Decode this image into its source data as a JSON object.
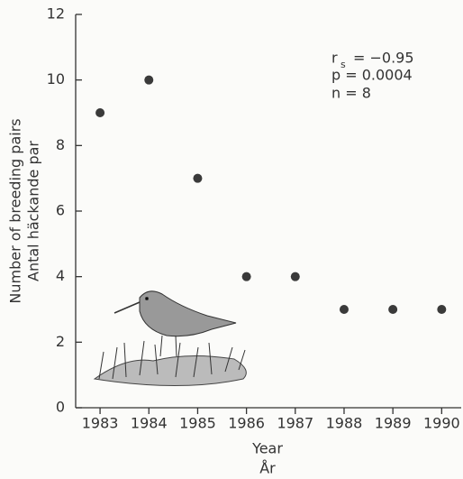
{
  "chart_data": {
    "type": "scatter",
    "x": [
      1983,
      1984,
      1985,
      1986,
      1987,
      1988,
      1989,
      1990
    ],
    "values": [
      9,
      10,
      7,
      4,
      4,
      3,
      3,
      3
    ],
    "color": "#3a3a3a",
    "xlim": [
      1982.5,
      1990.4
    ],
    "xticks": [
      1983,
      1984,
      1985,
      1986,
      1987,
      1988,
      1989,
      1990
    ],
    "ylim": [
      0,
      12
    ],
    "yticks": [
      0,
      2,
      4,
      6,
      8,
      10,
      12
    ],
    "x_label": [
      "Year",
      "År"
    ],
    "y_label": [
      "Number of breeding pairs",
      "Antal häckande par"
    ],
    "stats": [
      {
        "symbol": "r",
        "subscript": "s",
        "text": "= −0.95"
      },
      {
        "text": "p = 0.0004"
      },
      {
        "text": "n = 8"
      }
    ]
  }
}
